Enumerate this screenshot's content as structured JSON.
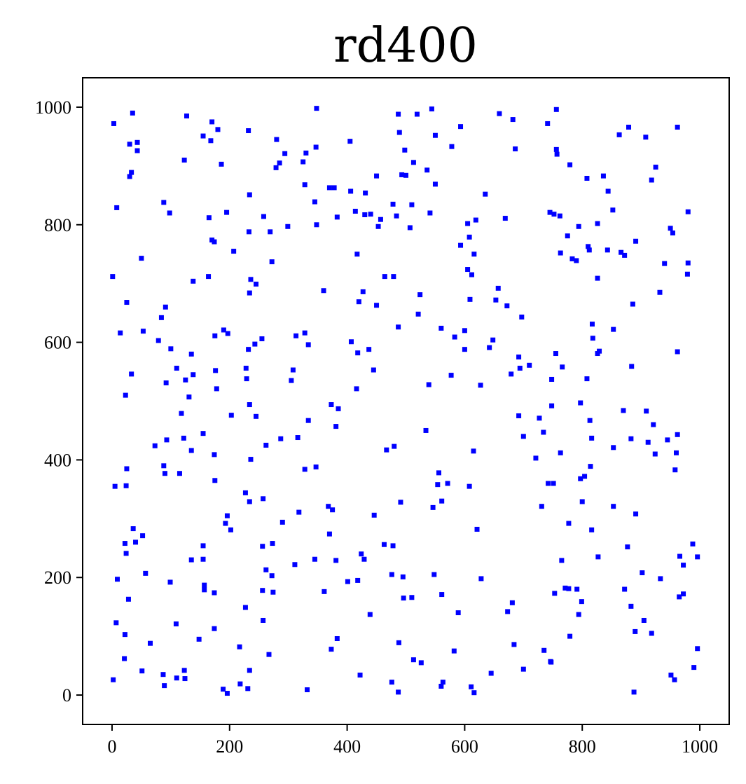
{
  "chart_data": {
    "type": "scatter",
    "title": "rd400",
    "xlabel": "",
    "ylabel": "",
    "xlim": [
      -50,
      1050
    ],
    "ylim": [
      -50,
      1050
    ],
    "xticks": [
      0,
      200,
      400,
      600,
      800,
      1000
    ],
    "yticks": [
      0,
      200,
      400,
      600,
      800,
      1000
    ],
    "xtick_labels": [
      "0",
      "200",
      "400",
      "600",
      "800",
      "1000"
    ],
    "ytick_labels": [
      "0",
      "200",
      "400",
      "600",
      "800",
      "1000"
    ],
    "grid": false,
    "marker": "square",
    "color": "#0000ff",
    "points": [
      [
        3,
        972
      ],
      [
        35,
        990
      ],
      [
        8,
        829
      ],
      [
        30,
        937
      ],
      [
        43,
        926
      ],
      [
        43,
        940
      ],
      [
        30,
        882
      ],
      [
        33,
        889
      ],
      [
        1,
        712
      ],
      [
        25,
        668
      ],
      [
        14,
        616
      ],
      [
        50,
        743
      ],
      [
        88,
        838
      ],
      [
        98,
        820
      ],
      [
        84,
        642
      ],
      [
        91,
        660
      ],
      [
        138,
        704
      ],
      [
        53,
        619
      ],
      [
        79,
        603
      ],
      [
        123,
        910
      ],
      [
        127,
        985
      ],
      [
        155,
        951
      ],
      [
        168,
        943
      ],
      [
        170,
        975
      ],
      [
        180,
        962
      ],
      [
        186,
        903
      ],
      [
        165,
        812
      ],
      [
        170,
        774
      ],
      [
        174,
        771
      ],
      [
        164,
        712
      ],
      [
        207,
        755
      ],
      [
        195,
        821
      ],
      [
        232,
        960
      ],
      [
        234,
        851
      ],
      [
        233,
        788
      ],
      [
        236,
        707
      ],
      [
        234,
        684
      ],
      [
        245,
        699
      ],
      [
        258,
        814
      ],
      [
        269,
        788
      ],
      [
        272,
        737
      ],
      [
        280,
        945
      ],
      [
        279,
        897
      ],
      [
        285,
        905
      ],
      [
        294,
        921
      ],
      [
        299,
        797
      ],
      [
        325,
        907
      ],
      [
        330,
        922
      ],
      [
        328,
        868
      ],
      [
        345,
        839
      ],
      [
        348,
        998
      ],
      [
        347,
        932
      ],
      [
        348,
        800
      ],
      [
        360,
        688
      ],
      [
        370,
        863
      ],
      [
        378,
        863
      ],
      [
        383,
        813
      ],
      [
        405,
        942
      ],
      [
        406,
        857
      ],
      [
        414,
        823
      ],
      [
        417,
        750
      ],
      [
        420,
        669
      ],
      [
        427,
        686
      ],
      [
        430,
        817
      ],
      [
        431,
        854
      ],
      [
        440,
        818
      ],
      [
        453,
        797
      ],
      [
        450,
        883
      ],
      [
        450,
        663
      ],
      [
        457,
        809
      ],
      [
        464,
        712
      ],
      [
        479,
        712
      ],
      [
        478,
        835
      ],
      [
        484,
        815
      ],
      [
        487,
        988
      ],
      [
        489,
        957
      ],
      [
        493,
        885
      ],
      [
        498,
        927
      ],
      [
        500,
        884
      ],
      [
        507,
        795
      ],
      [
        513,
        906
      ],
      [
        519,
        988
      ],
      [
        524,
        681
      ],
      [
        510,
        834
      ],
      [
        536,
        893
      ],
      [
        544,
        997
      ],
      [
        541,
        820
      ],
      [
        550,
        952
      ],
      [
        550,
        869
      ],
      [
        578,
        933
      ],
      [
        593,
        967
      ],
      [
        593,
        765
      ],
      [
        605,
        802
      ],
      [
        605,
        724
      ],
      [
        608,
        779
      ],
      [
        612,
        715
      ],
      [
        616,
        750
      ],
      [
        609,
        673
      ],
      [
        619,
        808
      ],
      [
        635,
        852
      ],
      [
        659,
        989
      ],
      [
        669,
        811
      ],
      [
        682,
        979
      ],
      [
        686,
        929
      ],
      [
        657,
        692
      ],
      [
        653,
        672
      ],
      [
        672,
        662
      ],
      [
        697,
        643
      ],
      [
        741,
        972
      ],
      [
        745,
        821
      ],
      [
        752,
        818
      ],
      [
        756,
        996
      ],
      [
        756,
        928
      ],
      [
        757,
        920
      ],
      [
        762,
        815
      ],
      [
        763,
        752
      ],
      [
        775,
        781
      ],
      [
        779,
        902
      ],
      [
        783,
        742
      ],
      [
        790,
        739
      ],
      [
        794,
        797
      ],
      [
        808,
        879
      ],
      [
        810,
        763
      ],
      [
        812,
        757
      ],
      [
        826,
        802
      ],
      [
        826,
        709
      ],
      [
        836,
        883
      ],
      [
        843,
        757
      ],
      [
        844,
        857
      ],
      [
        852,
        825
      ],
      [
        863,
        953
      ],
      [
        866,
        753
      ],
      [
        872,
        748
      ],
      [
        879,
        966
      ],
      [
        886,
        665
      ],
      [
        891,
        772
      ],
      [
        908,
        949
      ],
      [
        918,
        876
      ],
      [
        925,
        898
      ],
      [
        932,
        685
      ],
      [
        940,
        734
      ],
      [
        950,
        794
      ],
      [
        954,
        786
      ],
      [
        962,
        966
      ],
      [
        962,
        584
      ],
      [
        980,
        822
      ],
      [
        979,
        716
      ],
      [
        980,
        735
      ],
      [
        23,
        510
      ],
      [
        33,
        546
      ],
      [
        92,
        531
      ],
      [
        100,
        589
      ],
      [
        110,
        556
      ],
      [
        118,
        479
      ],
      [
        125,
        536
      ],
      [
        131,
        507
      ],
      [
        135,
        580
      ],
      [
        138,
        545
      ],
      [
        175,
        611
      ],
      [
        176,
        552
      ],
      [
        178,
        521
      ],
      [
        190,
        621
      ],
      [
        197,
        615
      ],
      [
        228,
        556
      ],
      [
        229,
        538
      ],
      [
        232,
        588
      ],
      [
        234,
        494
      ],
      [
        243,
        597
      ],
      [
        245,
        474
      ],
      [
        255,
        606
      ],
      [
        305,
        535
      ],
      [
        308,
        553
      ],
      [
        313,
        611
      ],
      [
        328,
        616
      ],
      [
        334,
        596
      ],
      [
        334,
        467
      ],
      [
        373,
        494
      ],
      [
        385,
        487
      ],
      [
        381,
        457
      ],
      [
        407,
        601
      ],
      [
        416,
        521
      ],
      [
        418,
        582
      ],
      [
        437,
        588
      ],
      [
        445,
        553
      ],
      [
        487,
        626
      ],
      [
        521,
        648
      ],
      [
        539,
        528
      ],
      [
        534,
        450
      ],
      [
        560,
        624
      ],
      [
        577,
        544
      ],
      [
        583,
        609
      ],
      [
        600,
        620
      ],
      [
        600,
        588
      ],
      [
        627,
        527
      ],
      [
        642,
        591
      ],
      [
        648,
        604
      ],
      [
        679,
        546
      ],
      [
        692,
        575
      ],
      [
        694,
        556
      ],
      [
        692,
        475
      ],
      [
        700,
        440
      ],
      [
        710,
        561
      ],
      [
        727,
        471
      ],
      [
        734,
        447
      ],
      [
        748,
        537
      ],
      [
        748,
        492
      ],
      [
        755,
        581
      ],
      [
        766,
        558
      ],
      [
        797,
        497
      ],
      [
        808,
        538
      ],
      [
        813,
        467
      ],
      [
        816,
        437
      ],
      [
        817,
        631
      ],
      [
        818,
        607
      ],
      [
        826,
        581
      ],
      [
        829,
        585
      ],
      [
        853,
        622
      ],
      [
        853,
        421
      ],
      [
        870,
        484
      ],
      [
        883,
        436
      ],
      [
        884,
        559
      ],
      [
        909,
        483
      ],
      [
        912,
        430
      ],
      [
        921,
        460
      ],
      [
        924,
        410
      ],
      [
        945,
        434
      ],
      [
        958,
        383
      ],
      [
        960,
        412
      ],
      [
        962,
        443
      ],
      [
        73,
        424
      ],
      [
        88,
        390
      ],
      [
        90,
        377
      ],
      [
        93,
        434
      ],
      [
        115,
        377
      ],
      [
        122,
        437
      ],
      [
        135,
        416
      ],
      [
        155,
        445
      ],
      [
        174,
        409
      ],
      [
        175,
        365
      ],
      [
        203,
        476
      ],
      [
        227,
        344
      ],
      [
        234,
        329
      ],
      [
        236,
        401
      ],
      [
        257,
        334
      ],
      [
        262,
        425
      ],
      [
        287,
        436
      ],
      [
        290,
        294
      ],
      [
        316,
        438
      ],
      [
        318,
        311
      ],
      [
        328,
        384
      ],
      [
        347,
        388
      ],
      [
        368,
        321
      ],
      [
        375,
        315
      ],
      [
        467,
        417
      ],
      [
        480,
        423
      ],
      [
        491,
        328
      ],
      [
        546,
        319
      ],
      [
        554,
        358
      ],
      [
        556,
        378
      ],
      [
        561,
        330
      ],
      [
        571,
        360
      ],
      [
        608,
        355
      ],
      [
        615,
        415
      ],
      [
        621,
        282
      ],
      [
        721,
        403
      ],
      [
        731,
        321
      ],
      [
        742,
        360
      ],
      [
        751,
        360
      ],
      [
        763,
        412
      ],
      [
        797,
        368
      ],
      [
        800,
        329
      ],
      [
        804,
        372
      ],
      [
        814,
        389
      ],
      [
        816,
        281
      ],
      [
        853,
        321
      ],
      [
        5,
        355
      ],
      [
        24,
        356
      ],
      [
        25,
        385
      ],
      [
        36,
        283
      ],
      [
        40,
        260
      ],
      [
        22,
        258
      ],
      [
        24,
        241
      ],
      [
        52,
        271
      ],
      [
        9,
        197
      ],
      [
        28,
        163
      ],
      [
        57,
        207
      ],
      [
        7,
        123
      ],
      [
        22,
        103
      ],
      [
        21,
        62
      ],
      [
        65,
        88
      ],
      [
        51,
        41
      ],
      [
        2,
        26
      ],
      [
        99,
        192
      ],
      [
        109,
        121
      ],
      [
        87,
        35
      ],
      [
        89,
        16
      ],
      [
        110,
        29
      ],
      [
        123,
        42
      ],
      [
        124,
        28
      ],
      [
        135,
        230
      ],
      [
        148,
        95
      ],
      [
        155,
        254
      ],
      [
        155,
        231
      ],
      [
        157,
        187
      ],
      [
        157,
        179
      ],
      [
        174,
        174
      ],
      [
        174,
        113
      ],
      [
        189,
        10
      ],
      [
        193,
        292
      ],
      [
        196,
        305
      ],
      [
        196,
        3
      ],
      [
        202,
        281
      ],
      [
        217,
        82
      ],
      [
        218,
        19
      ],
      [
        227,
        149
      ],
      [
        234,
        42
      ],
      [
        231,
        11
      ],
      [
        256,
        253
      ],
      [
        256,
        178
      ],
      [
        257,
        127
      ],
      [
        262,
        213
      ],
      [
        267,
        69
      ],
      [
        272,
        203
      ],
      [
        273,
        258
      ],
      [
        274,
        175
      ],
      [
        311,
        222
      ],
      [
        332,
        9
      ],
      [
        345,
        231
      ],
      [
        361,
        176
      ],
      [
        370,
        274
      ],
      [
        373,
        78
      ],
      [
        381,
        229
      ],
      [
        383,
        96
      ],
      [
        401,
        193
      ],
      [
        418,
        195
      ],
      [
        422,
        34
      ],
      [
        424,
        240
      ],
      [
        429,
        231
      ],
      [
        439,
        137
      ],
      [
        446,
        306
      ],
      [
        463,
        256
      ],
      [
        476,
        22
      ],
      [
        478,
        254
      ],
      [
        476,
        205
      ],
      [
        487,
        5
      ],
      [
        488,
        89
      ],
      [
        495,
        201
      ],
      [
        496,
        165
      ],
      [
        510,
        166
      ],
      [
        513,
        60
      ],
      [
        526,
        55
      ],
      [
        548,
        205
      ],
      [
        561,
        171
      ],
      [
        560,
        15
      ],
      [
        563,
        22
      ],
      [
        582,
        75
      ],
      [
        589,
        140
      ],
      [
        611,
        14
      ],
      [
        616,
        4
      ],
      [
        628,
        198
      ],
      [
        645,
        37
      ],
      [
        673,
        142
      ],
      [
        681,
        157
      ],
      [
        684,
        86
      ],
      [
        700,
        44
      ],
      [
        735,
        76
      ],
      [
        746,
        57
      ],
      [
        747,
        56
      ],
      [
        753,
        173
      ],
      [
        765,
        229
      ],
      [
        771,
        182
      ],
      [
        777,
        181
      ],
      [
        777,
        292
      ],
      [
        779,
        100
      ],
      [
        791,
        180
      ],
      [
        794,
        137
      ],
      [
        799,
        159
      ],
      [
        827,
        235
      ],
      [
        872,
        180
      ],
      [
        877,
        252
      ],
      [
        883,
        151
      ],
      [
        888,
        5
      ],
      [
        890,
        108
      ],
      [
        891,
        308
      ],
      [
        902,
        208
      ],
      [
        905,
        127
      ],
      [
        918,
        105
      ],
      [
        933,
        198
      ],
      [
        951,
        34
      ],
      [
        957,
        26
      ],
      [
        965,
        167
      ],
      [
        966,
        236
      ],
      [
        972,
        221
      ],
      [
        972,
        172
      ],
      [
        988,
        257
      ],
      [
        990,
        47
      ],
      [
        996,
        235
      ],
      [
        996,
        79
      ]
    ]
  }
}
